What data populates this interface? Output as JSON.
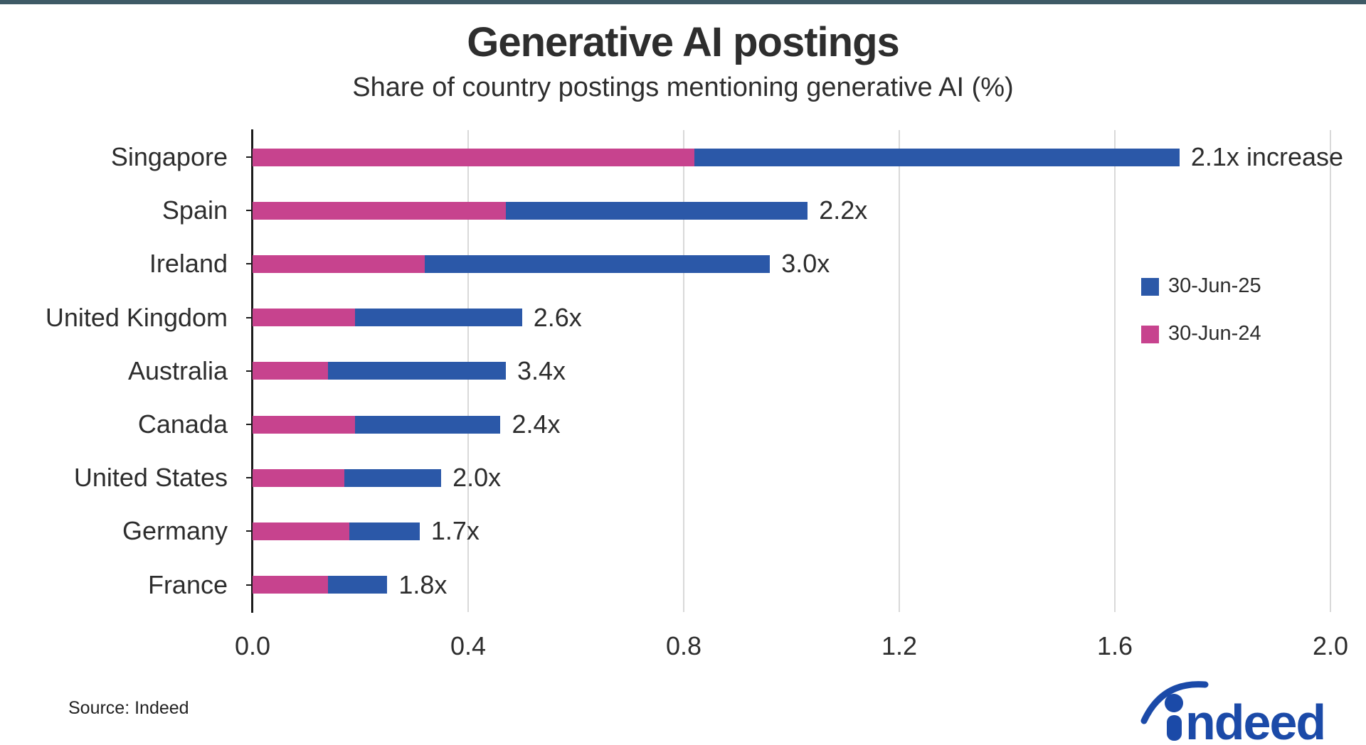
{
  "page": {
    "accent_bar_color": "#3e5a66",
    "background": "#ffffff"
  },
  "header": {
    "title": "Generative AI postings",
    "subtitle": "Share of country postings mentioning generative AI (%)"
  },
  "chart_data": {
    "type": "bar",
    "orientation": "horizontal",
    "title": "Generative AI postings",
    "subtitle": "Share of country postings mentioning generative AI (%)",
    "categories": [
      "Singapore",
      "Spain",
      "Ireland",
      "United Kingdom",
      "Australia",
      "Canada",
      "United States",
      "Germany",
      "France"
    ],
    "series": [
      {
        "name": "30-Jun-25",
        "color": "#2b58a8",
        "values": [
          1.72,
          1.03,
          0.96,
          0.5,
          0.47,
          0.46,
          0.35,
          0.31,
          0.25
        ]
      },
      {
        "name": "30-Jun-24",
        "color": "#c7438e",
        "values": [
          0.82,
          0.47,
          0.32,
          0.19,
          0.14,
          0.19,
          0.17,
          0.18,
          0.14
        ]
      }
    ],
    "bar_labels": [
      "2.1x increase",
      "2.2x",
      "3.0x",
      "2.6x",
      "3.4x",
      "2.4x",
      "2.0x",
      "1.7x",
      "1.8x"
    ],
    "xlim": [
      0.0,
      2.0
    ],
    "xticks": [
      0.0,
      0.4,
      0.8,
      1.2,
      1.6,
      2.0
    ],
    "xtick_labels": [
      "0.0",
      "0.4",
      "0.8",
      "1.2",
      "1.6",
      "2.0"
    ],
    "grid": true,
    "gridline_color": "#d9d9d9",
    "legend_position": "right"
  },
  "legend": {
    "items": [
      {
        "label": "30-Jun-25",
        "color": "#2b58a8"
      },
      {
        "label": "30-Jun-24",
        "color": "#c7438e"
      }
    ]
  },
  "footer": {
    "source": "Source: Indeed",
    "logo_text": "indeed",
    "logo_color": "#1b4aa8"
  }
}
